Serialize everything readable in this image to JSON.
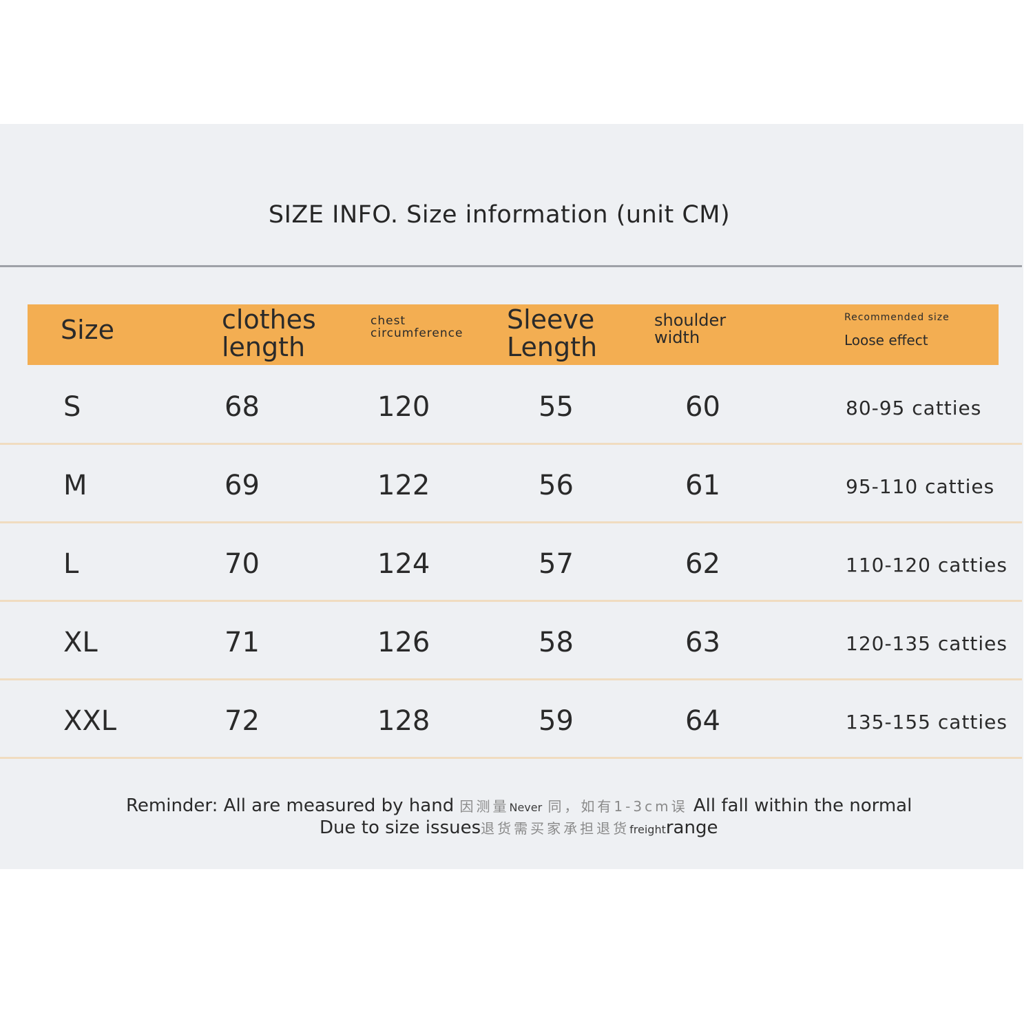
{
  "title": "SIZE INFO. Size information (unit CM)",
  "header": {
    "size": "Size",
    "length": "clothes length",
    "chest": "chest circumference",
    "sleeve": "Sleeve Length",
    "shoulder": "shoulder width",
    "recommended_small": "Recommended size",
    "recommended_main": "Loose effect"
  },
  "rows": [
    {
      "size": "S",
      "length": "68",
      "chest": "120",
      "sleeve": "55",
      "shoulder": "60",
      "recommended": "80-95 catties"
    },
    {
      "size": "M",
      "length": "69",
      "chest": "122",
      "sleeve": "56",
      "shoulder": "61",
      "recommended": "95-110 catties"
    },
    {
      "size": "L",
      "length": "70",
      "chest": "124",
      "sleeve": "57",
      "shoulder": "62",
      "recommended": "110-120 catties"
    },
    {
      "size": "XL",
      "length": "71",
      "chest": "126",
      "sleeve": "58",
      "shoulder": "63",
      "recommended": "120-135 catties"
    },
    {
      "size": "XXL",
      "length": "72",
      "chest": "128",
      "sleeve": "59",
      "shoulder": "64",
      "recommended": "135-155 catties"
    }
  ],
  "reminder": {
    "line1_a": "Reminder: All are measured by hand",
    "line1_cn1": "因测量",
    "line1_never": "Never",
    "line1_cn2": "同，如有1-3cm误",
    "line1_b": "All fall within the normal",
    "line2_a": "Due to size issues",
    "line2_cn": "退货需买家承担退货",
    "line2_freight": "freight",
    "line2_b": "range"
  },
  "colors": {
    "header_bar": "#f3ae52",
    "panel": "#eef0f3",
    "row_divider": "#f0dcc0"
  }
}
